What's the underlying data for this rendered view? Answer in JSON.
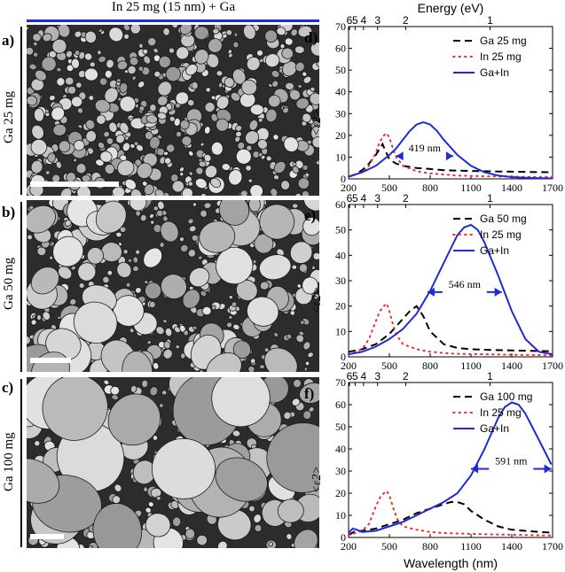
{
  "header": {
    "title": "In 25 mg (15 nm) + Ga"
  },
  "sem_panels": [
    {
      "letter": "a)",
      "label": "Ga  25 mg"
    },
    {
      "letter": "b)",
      "label": "Ga  50 mg"
    },
    {
      "letter": "c)",
      "label": "Ga  100 mg"
    }
  ],
  "colors": {
    "blue": "#1f2bd4",
    "red": "#e8302e",
    "black": "#000000"
  },
  "chart_data": [
    {
      "type": "line",
      "panel": "d)",
      "ylabel": "<ε2>",
      "top_axis_label": "Energy (eV)",
      "top_ticks": [
        "6",
        "5",
        "4",
        "3",
        "2",
        "1"
      ],
      "top_tick_energies": [
        6,
        5,
        4,
        3,
        2,
        1
      ],
      "xlim": [
        200,
        1700
      ],
      "ylim": [
        0,
        70
      ],
      "xticks": [
        "200",
        "500",
        "800",
        "1100",
        "1400",
        "1700"
      ],
      "yticks": [
        "0",
        "10",
        "20",
        "30",
        "40",
        "50",
        "60",
        "70"
      ],
      "legend": [
        "Ga 25 mg",
        "In 25 mg",
        "Ga+In"
      ],
      "annotation": "419 nm",
      "arrow_range": [
        550,
        969
      ],
      "arrow_y": 10.5,
      "series": [
        {
          "name": "Ga 25 mg",
          "style": "dash",
          "x": [
            200,
            250,
            300,
            350,
            400,
            430,
            450,
            470,
            500,
            550,
            600,
            700,
            800,
            900,
            1000,
            1200,
            1400,
            1600,
            1700
          ],
          "y": [
            1,
            2,
            4,
            7,
            11,
            14,
            16,
            13,
            9,
            7,
            6,
            5,
            4.5,
            4,
            3.8,
            3.5,
            3.3,
            3.1,
            3
          ]
        },
        {
          "name": "In 25 mg",
          "style": "dot",
          "x": [
            200,
            300,
            350,
            400,
            430,
            460,
            480,
            500,
            520,
            550,
            600,
            700,
            800,
            900,
            1000,
            1200,
            1400,
            1600,
            1700
          ],
          "y": [
            1,
            3,
            6,
            12,
            17,
            20,
            21,
            19,
            15,
            10,
            6,
            3.5,
            2.5,
            2,
            1.5,
            1.2,
            1,
            0.8,
            0.8
          ]
        },
        {
          "name": "Ga+In",
          "style": "solid",
          "x": [
            200,
            300,
            400,
            500,
            550,
            600,
            650,
            700,
            750,
            800,
            850,
            900,
            1000,
            1100,
            1200,
            1300,
            1400,
            1500,
            1600,
            1700
          ],
          "y": [
            1,
            3,
            6,
            11,
            14,
            18,
            22,
            25,
            26,
            25,
            22,
            18,
            11,
            6,
            3,
            1.5,
            0.8,
            0.5,
            0.3,
            0.2
          ]
        }
      ]
    },
    {
      "type": "line",
      "panel": "e)",
      "ylabel": "<ε2>",
      "top_ticks": [
        "6",
        "5",
        "4",
        "3",
        "2",
        "1"
      ],
      "top_tick_energies": [
        6,
        5,
        4,
        3,
        2,
        1
      ],
      "xlim": [
        200,
        1700
      ],
      "ylim": [
        0,
        60
      ],
      "xticks": [
        "200",
        "500",
        "800",
        "1100",
        "1400",
        "1700"
      ],
      "yticks": [
        "0",
        "10",
        "20",
        "30",
        "40",
        "50",
        "60"
      ],
      "legend": [
        "Ga 50 mg",
        "In 25 mg",
        "Ga+In"
      ],
      "annotation": "546 nm",
      "arrow_range": [
        780,
        1326
      ],
      "arrow_y": 25.5,
      "series": [
        {
          "name": "Ga 50 mg",
          "style": "dash",
          "x": [
            200,
            300,
            400,
            500,
            600,
            650,
            700,
            750,
            800,
            900,
            1000,
            1100,
            1200,
            1400,
            1600,
            1700
          ],
          "y": [
            2,
            3,
            5,
            9,
            15,
            18,
            20,
            16,
            10,
            5,
            3.5,
            3,
            2.8,
            2.5,
            2.3,
            2.2
          ]
        },
        {
          "name": "In 25 mg",
          "style": "dot",
          "x": [
            200,
            300,
            350,
            400,
            430,
            460,
            480,
            500,
            530,
            560,
            600,
            700,
            800,
            900,
            1000,
            1200,
            1400,
            1600,
            1700
          ],
          "y": [
            1,
            3,
            7,
            14,
            18,
            20,
            21,
            18,
            12,
            8,
            5,
            3,
            2,
            1.5,
            1.2,
            1,
            0.8,
            0.7,
            0.6
          ]
        },
        {
          "name": "Ga+In",
          "style": "solid",
          "x": [
            200,
            300,
            400,
            500,
            600,
            700,
            800,
            900,
            1000,
            1050,
            1100,
            1150,
            1200,
            1300,
            1400,
            1500,
            1600,
            1700
          ],
          "y": [
            1,
            2,
            4,
            7,
            11,
            17,
            26,
            37,
            48,
            51,
            52,
            50,
            45,
            32,
            18,
            7,
            2,
            1
          ]
        }
      ]
    },
    {
      "type": "line",
      "panel": "f)",
      "ylabel": "<ε2>",
      "xlabel": "Wavelength (nm)",
      "top_ticks": [
        "6",
        "5",
        "4",
        "3",
        "2",
        "1"
      ],
      "top_tick_energies": [
        6,
        5,
        4,
        3,
        2,
        1
      ],
      "xlim": [
        200,
        1700
      ],
      "ylim": [
        0,
        70
      ],
      "xticks": [
        "200",
        "500",
        "800",
        "1100",
        "1400",
        "1700"
      ],
      "yticks": [
        "0",
        "10",
        "20",
        "30",
        "40",
        "50",
        "60",
        "70"
      ],
      "legend": [
        "Ga 100 mg",
        "In 25 mg",
        "Ga+In"
      ],
      "annotation": "591 nm",
      "arrow_range": [
        1100,
        1691
      ],
      "arrow_y": 31,
      "series": [
        {
          "name": "Ga 100 mg",
          "style": "dash",
          "x": [
            200,
            250,
            300,
            400,
            500,
            600,
            700,
            800,
            900,
            950,
            1000,
            1050,
            1100,
            1200,
            1300,
            1400,
            1500,
            1600,
            1700
          ],
          "y": [
            1,
            3,
            3,
            4,
            6,
            8,
            11,
            13,
            15,
            16,
            16,
            15,
            12,
            8,
            5,
            3.5,
            3,
            2.5,
            2.2
          ]
        },
        {
          "name": "In 25 mg",
          "style": "dot",
          "x": [
            200,
            300,
            350,
            400,
            430,
            460,
            480,
            500,
            530,
            560,
            600,
            700,
            800,
            900,
            1000,
            1200,
            1400,
            1600,
            1700
          ],
          "y": [
            1,
            3,
            6,
            14,
            18,
            20,
            21,
            19,
            13,
            8,
            5,
            3.5,
            2.5,
            2,
            1.8,
            1.5,
            1.2,
            1,
            0.9
          ]
        },
        {
          "name": "Ga+In",
          "style": "solid",
          "x": [
            200,
            230,
            260,
            300,
            400,
            500,
            600,
            700,
            800,
            900,
            1000,
            1100,
            1200,
            1300,
            1350,
            1400,
            1450,
            1500,
            1550,
            1600,
            1650,
            1690
          ],
          "y": [
            2,
            4,
            3.5,
            2.5,
            3,
            5,
            7,
            10,
            13,
            16,
            20,
            28,
            40,
            54,
            59,
            61,
            60,
            56,
            50,
            44,
            38,
            33
          ]
        }
      ]
    }
  ]
}
